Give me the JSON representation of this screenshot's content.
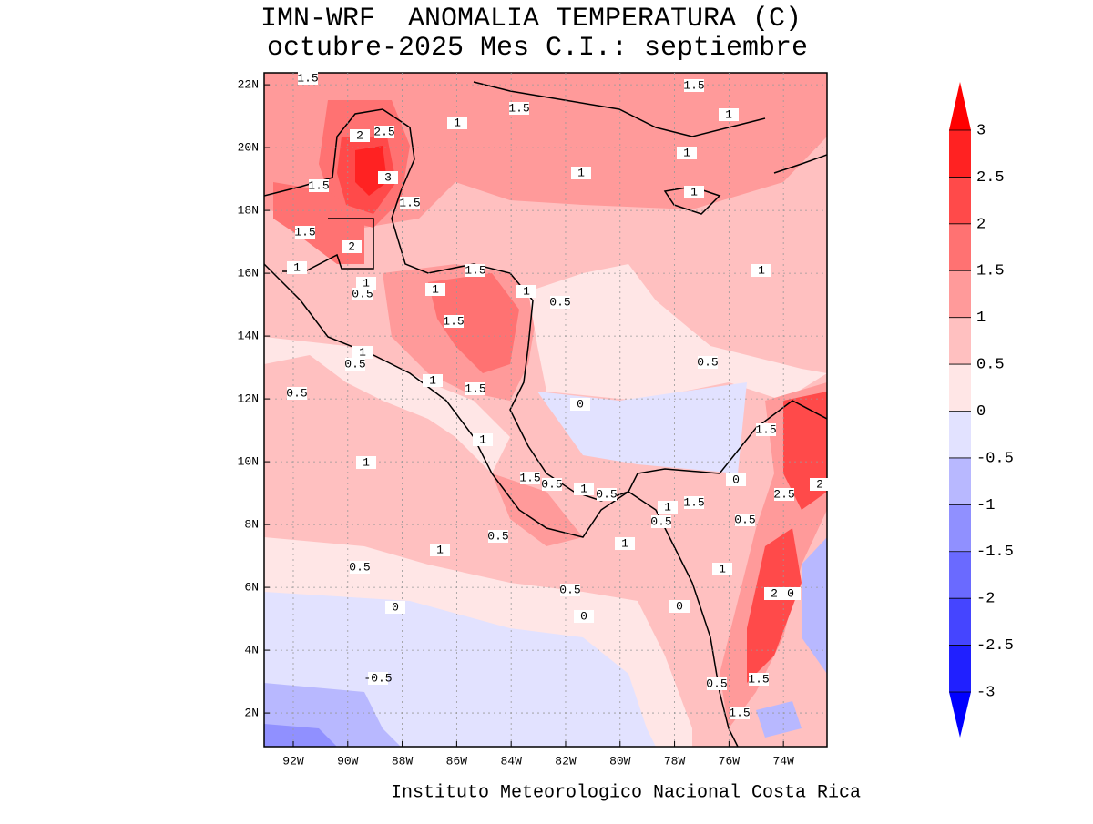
{
  "title": "IMN-WRF  ANOMALIA TEMPERATURA (C)",
  "subtitle": "octubre-2025 Mes C.I.: septiembre",
  "footer": "Instituto Meteorologico Nacional Costa Rica",
  "map": {
    "xlim": [
      -93.07,
      -72.4
    ],
    "ylim": [
      0.93,
      22.38
    ],
    "xticks": [
      {
        "value": -92,
        "label": "92W"
      },
      {
        "value": -90,
        "label": "90W"
      },
      {
        "value": -88,
        "label": "88W"
      },
      {
        "value": -86,
        "label": "86W"
      },
      {
        "value": -84,
        "label": "84W"
      },
      {
        "value": -82,
        "label": "82W"
      },
      {
        "value": -80,
        "label": "80W"
      },
      {
        "value": -78,
        "label": "78W"
      },
      {
        "value": -76,
        "label": "76W"
      },
      {
        "value": -74,
        "label": "74W"
      }
    ],
    "yticks": [
      {
        "value": 2,
        "label": "2N"
      },
      {
        "value": 4,
        "label": "4N"
      },
      {
        "value": 6,
        "label": "6N"
      },
      {
        "value": 8,
        "label": "8N"
      },
      {
        "value": 10,
        "label": "10N"
      },
      {
        "value": 12,
        "label": "12N"
      },
      {
        "value": 14,
        "label": "14N"
      },
      {
        "value": 16,
        "label": "16N"
      },
      {
        "value": 18,
        "label": "18N"
      },
      {
        "value": 20,
        "label": "20N"
      },
      {
        "value": 22,
        "label": "22N"
      }
    ],
    "grid": true,
    "contour_labels": [
      1.5,
      1.5,
      1.5,
      1,
      1,
      2,
      2.5,
      3,
      1.5,
      1.5,
      1,
      1,
      1,
      1.5,
      2,
      1,
      1,
      0.5,
      1.5,
      1,
      1,
      0.5,
      1,
      1.5,
      1,
      0.5,
      0.5,
      1,
      1.5,
      0.5,
      0,
      1.5,
      1,
      1,
      1.5,
      0.5,
      1,
      0.5,
      0,
      2.5,
      2,
      1,
      1.5,
      0.5,
      0.5,
      0.5,
      1,
      1,
      0.5,
      1,
      0.5,
      2,
      0,
      0,
      0,
      0,
      -0.5,
      0.5,
      1.5,
      1.5
    ]
  },
  "colorbar": {
    "levels": [
      -3,
      -2.5,
      -2,
      -1.5,
      -1,
      -0.5,
      0,
      0.5,
      1,
      1.5,
      2,
      2.5,
      3
    ],
    "colors": [
      "#0000ff",
      "#2020ff",
      "#4545ff",
      "#6a6aff",
      "#9090ff",
      "#b8b8ff",
      "#e2e2ff",
      "#ffe6e6",
      "#ffc0c0",
      "#ff9a9a",
      "#ff7272",
      "#ff4a4a",
      "#ff2222",
      "#ff0000"
    ]
  }
}
